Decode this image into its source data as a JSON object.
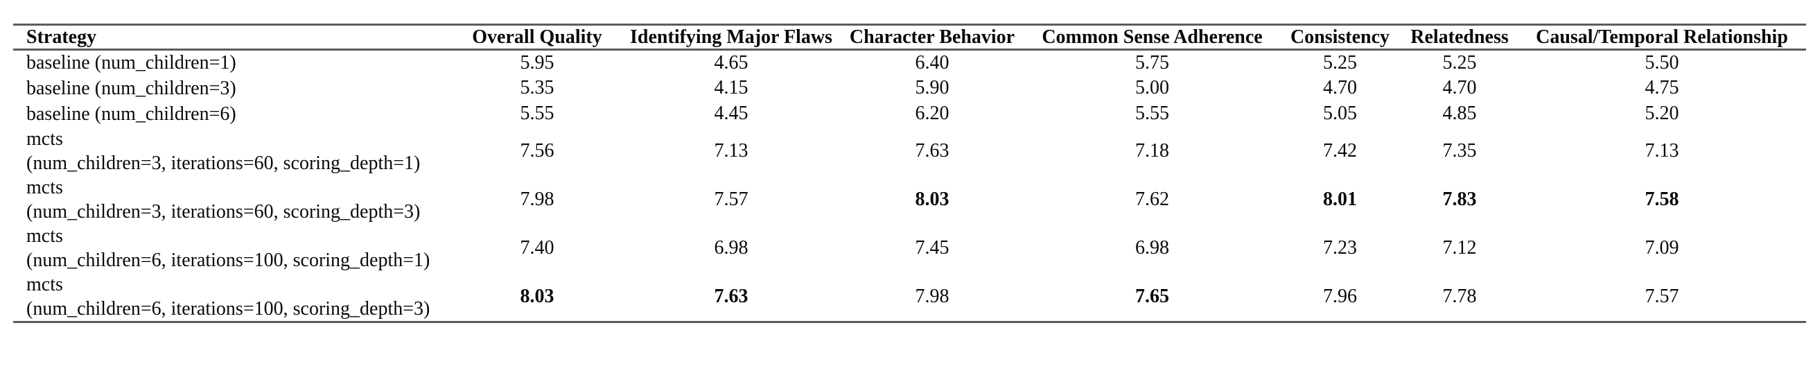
{
  "table": {
    "rule_color": "#5c5c5c",
    "columns": [
      {
        "key": "strategy",
        "label": "Strategy",
        "align": "left"
      },
      {
        "key": "overall_quality",
        "label": "Overall Quality",
        "align": "center"
      },
      {
        "key": "identifying_major_flaws",
        "label": "Identifying Major Flaws",
        "align": "center"
      },
      {
        "key": "character_behavior",
        "label": "Character Behavior",
        "align": "center"
      },
      {
        "key": "common_sense_adherence",
        "label": "Common Sense Adherence",
        "align": "center"
      },
      {
        "key": "consistency",
        "label": "Consistency",
        "align": "center"
      },
      {
        "key": "relatedness",
        "label": "Relatedness",
        "align": "center"
      },
      {
        "key": "causal_temporal_relationship",
        "label": "Causal/Temporal Relationship",
        "align": "center"
      }
    ],
    "rows": [
      {
        "strategy_lines": [
          "baseline (num_children=1)"
        ],
        "values": [
          {
            "v": "5.95",
            "b": false
          },
          {
            "v": "4.65",
            "b": false
          },
          {
            "v": "6.40",
            "b": false
          },
          {
            "v": "5.75",
            "b": false
          },
          {
            "v": "5.25",
            "b": false
          },
          {
            "v": "5.25",
            "b": false
          },
          {
            "v": "5.50",
            "b": false
          }
        ]
      },
      {
        "strategy_lines": [
          "baseline (num_children=3)"
        ],
        "values": [
          {
            "v": "5.35",
            "b": false
          },
          {
            "v": "4.15",
            "b": false
          },
          {
            "v": "5.90",
            "b": false
          },
          {
            "v": "5.00",
            "b": false
          },
          {
            "v": "4.70",
            "b": false
          },
          {
            "v": "4.70",
            "b": false
          },
          {
            "v": "4.75",
            "b": false
          }
        ]
      },
      {
        "strategy_lines": [
          "baseline (num_children=6)"
        ],
        "values": [
          {
            "v": "5.55",
            "b": false
          },
          {
            "v": "4.45",
            "b": false
          },
          {
            "v": "6.20",
            "b": false
          },
          {
            "v": "5.55",
            "b": false
          },
          {
            "v": "5.05",
            "b": false
          },
          {
            "v": "4.85",
            "b": false
          },
          {
            "v": "5.20",
            "b": false
          }
        ]
      },
      {
        "strategy_lines": [
          "mcts",
          "(num_children=3, iterations=60, scoring_depth=1)"
        ],
        "values": [
          {
            "v": "7.56",
            "b": false
          },
          {
            "v": "7.13",
            "b": false
          },
          {
            "v": "7.63",
            "b": false
          },
          {
            "v": "7.18",
            "b": false
          },
          {
            "v": "7.42",
            "b": false
          },
          {
            "v": "7.35",
            "b": false
          },
          {
            "v": "7.13",
            "b": false
          }
        ]
      },
      {
        "strategy_lines": [
          "mcts",
          "(num_children=3, iterations=60, scoring_depth=3)"
        ],
        "values": [
          {
            "v": "7.98",
            "b": false
          },
          {
            "v": "7.57",
            "b": false
          },
          {
            "v": "8.03",
            "b": true
          },
          {
            "v": "7.62",
            "b": false
          },
          {
            "v": "8.01",
            "b": true
          },
          {
            "v": "7.83",
            "b": true
          },
          {
            "v": "7.58",
            "b": true
          }
        ]
      },
      {
        "strategy_lines": [
          "mcts",
          "(num_children=6, iterations=100, scoring_depth=1)"
        ],
        "values": [
          {
            "v": "7.40",
            "b": false
          },
          {
            "v": "6.98",
            "b": false
          },
          {
            "v": "7.45",
            "b": false
          },
          {
            "v": "6.98",
            "b": false
          },
          {
            "v": "7.23",
            "b": false
          },
          {
            "v": "7.12",
            "b": false
          },
          {
            "v": "7.09",
            "b": false
          }
        ]
      },
      {
        "strategy_lines": [
          "mcts",
          "(num_children=6, iterations=100, scoring_depth=3)"
        ],
        "values": [
          {
            "v": "8.03",
            "b": true
          },
          {
            "v": "7.63",
            "b": true
          },
          {
            "v": "7.98",
            "b": false
          },
          {
            "v": "7.65",
            "b": true
          },
          {
            "v": "7.96",
            "b": false
          },
          {
            "v": "7.78",
            "b": false
          },
          {
            "v": "7.57",
            "b": false
          }
        ]
      }
    ]
  }
}
